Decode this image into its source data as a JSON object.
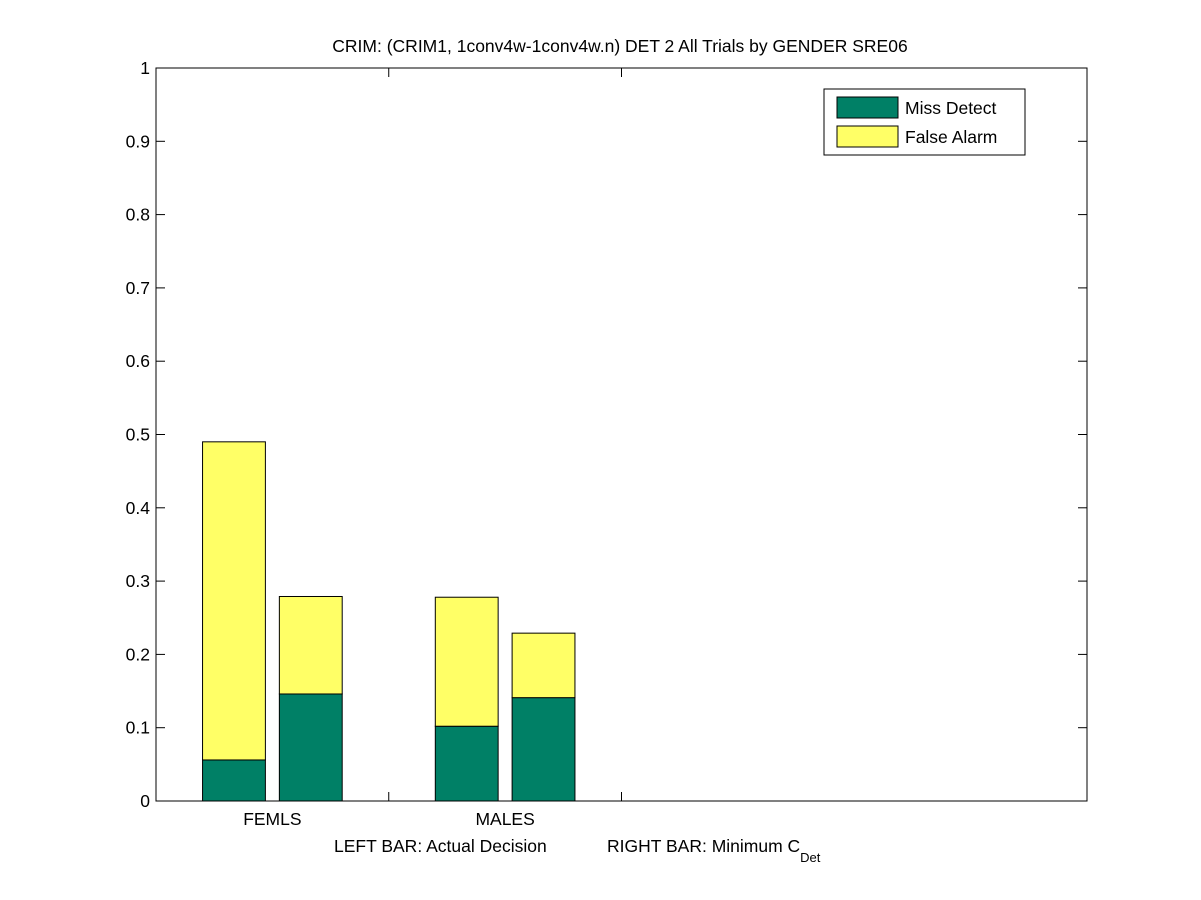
{
  "chart_data": {
    "type": "bar",
    "stacked": true,
    "title": "CRIM: (CRIM1, 1conv4w-1conv4w.n) DET 2 All Trials by GENDER SRE06",
    "xlabel": {
      "left": "LEFT BAR: Actual Decision",
      "right_prefix": "RIGHT BAR: Minimum C",
      "right_subscript": "Det"
    },
    "ylim": [
      0,
      1
    ],
    "yticks": [
      "0",
      "0.1",
      "0.2",
      "0.3",
      "0.4",
      "0.5",
      "0.6",
      "0.7",
      "0.8",
      "0.9",
      "1"
    ],
    "xlim": [
      0,
      4
    ],
    "xticks": [
      1,
      2
    ],
    "categories": [
      "FEMLS",
      "MALES"
    ],
    "bar_roles": [
      "Actual Decision",
      "Minimum C_Det"
    ],
    "series": [
      {
        "name": "Miss Detect",
        "color": "#008066",
        "values": [
          [
            0.056,
            0.146
          ],
          [
            0.102,
            0.141
          ]
        ]
      },
      {
        "name": "False Alarm",
        "color": "#ffff66",
        "values": [
          [
            0.434,
            0.133
          ],
          [
            0.176,
            0.088
          ]
        ]
      }
    ],
    "totals": [
      [
        0.49,
        0.279
      ],
      [
        0.278,
        0.229
      ]
    ],
    "legend_position": "top-right",
    "grid": false
  }
}
